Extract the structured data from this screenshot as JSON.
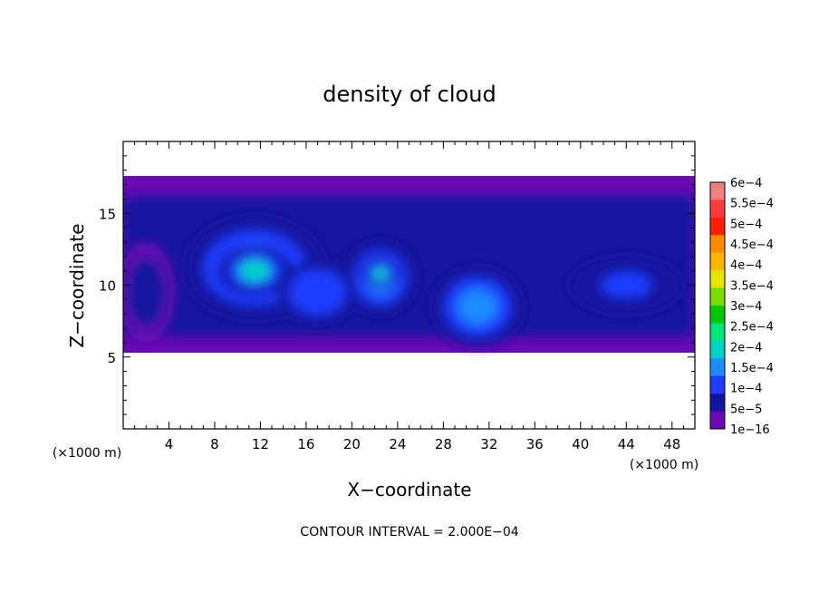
{
  "chart_data": {
    "type": "heatmap",
    "title": "density of cloud",
    "xlabel": "X−coordinate",
    "ylabel": "Z−coordinate",
    "x_unit": "(×1000 m)",
    "y_unit": "(×1000 m)",
    "footer": "CONTOUR INTERVAL = 2.000E−04",
    "xlim": [
      0,
      50
    ],
    "ylim": [
      0,
      20
    ],
    "x_ticks": [
      4,
      8,
      12,
      16,
      20,
      24,
      28,
      32,
      36,
      40,
      44,
      48
    ],
    "y_ticks": [
      5,
      10,
      15
    ],
    "cloud_layer": {
      "z_bottom": 5.3,
      "z_top": 17.6
    },
    "blobs": [
      {
        "x": 11.5,
        "z": 11.2,
        "rx": 6.2,
        "rz": 3.6,
        "value": 0.00015
      },
      {
        "x": 11.5,
        "z": 11.0,
        "rx": 3.2,
        "rz": 1.7,
        "value": 0.00019
      },
      {
        "x": 17.0,
        "z": 9.5,
        "rx": 3.5,
        "rz": 2.2,
        "value": 0.00013
      },
      {
        "x": 22.5,
        "z": 10.5,
        "rx": 3.2,
        "rz": 2.6,
        "value": 0.00015
      },
      {
        "x": 22.5,
        "z": 10.8,
        "rx": 1.5,
        "rz": 1.0,
        "value": 0.00019
      },
      {
        "x": 31.0,
        "z": 8.5,
        "rx": 4.0,
        "rz": 2.8,
        "value": 0.00014
      },
      {
        "x": 44.0,
        "z": 10.0,
        "rx": 5.0,
        "rz": 2.0,
        "value": 0.00011
      },
      {
        "x": 2.0,
        "z": 9.5,
        "rx": 2.5,
        "rz": 3.5,
        "value": 9e-05
      }
    ],
    "colorbar": {
      "labels": [
        "6e−4",
        "5.5e−4",
        "5e−4",
        "4.5e−4",
        "4e−4",
        "3.5e−4",
        "3e−4",
        "2.5e−4",
        "2e−4",
        "1.5e−4",
        "1e−4",
        "5e−5",
        "1e−16"
      ],
      "colors": [
        "#f08080",
        "#ff3c3c",
        "#ff1e00",
        "#ff8c00",
        "#ffb400",
        "#e6e600",
        "#78dc00",
        "#00c800",
        "#00e678",
        "#00d2c8",
        "#1e8cff",
        "#1e3cff",
        "#1414a0",
        "#6a0ab4"
      ]
    }
  }
}
